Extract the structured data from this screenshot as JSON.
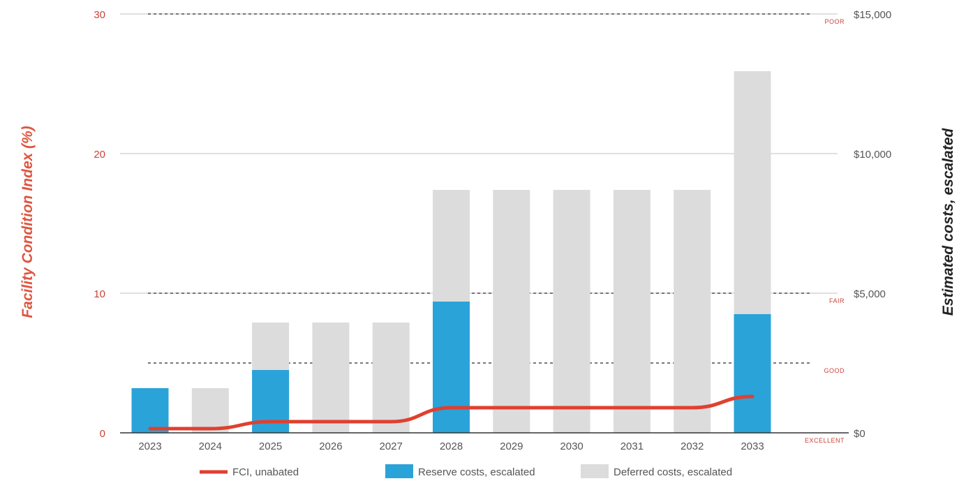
{
  "chart_data": {
    "type": "bar",
    "categories": [
      "2023",
      "2024",
      "2025",
      "2026",
      "2027",
      "2028",
      "2029",
      "2030",
      "2031",
      "2032",
      "2033"
    ],
    "ylabel_left": "Facility Condition Index (%)",
    "ylabel_right": "Estimated costs, escalated",
    "ylim_left": [
      0,
      30
    ],
    "ylim_right": [
      0,
      15000
    ],
    "yticks_left": [
      "0",
      "10",
      "20",
      "30"
    ],
    "yticks_right": [
      "$0",
      "$5,000",
      "$10,000",
      "$15,000"
    ],
    "grid": true,
    "legend_position": "bottom",
    "thresholds": [
      {
        "label": "POOR",
        "fci": 30
      },
      {
        "label": "FAIR",
        "fci": 10
      },
      {
        "label": "GOOD",
        "fci": 5
      },
      {
        "label": "EXCELLENT",
        "fci": 0
      }
    ],
    "series": [
      {
        "name": "FCI, unabated",
        "kind": "line",
        "axis": "left",
        "color": "#e0402f",
        "values": [
          0.3,
          0.3,
          0.8,
          0.8,
          0.8,
          1.8,
          1.8,
          1.8,
          1.8,
          1.8,
          2.6
        ]
      },
      {
        "name": "Reserve costs, escalated",
        "kind": "bar",
        "axis": "right",
        "color": "#2aa3d9",
        "values": [
          1600,
          0,
          2250,
          0,
          0,
          4700,
          0,
          0,
          0,
          0,
          4250
        ]
      },
      {
        "name": "Deferred costs, escalated",
        "kind": "bar",
        "axis": "right",
        "color": "#dcdcdc",
        "values": [
          0,
          1600,
          3950,
          3950,
          3950,
          8700,
          8700,
          8700,
          8700,
          8700,
          12950
        ]
      }
    ]
  }
}
